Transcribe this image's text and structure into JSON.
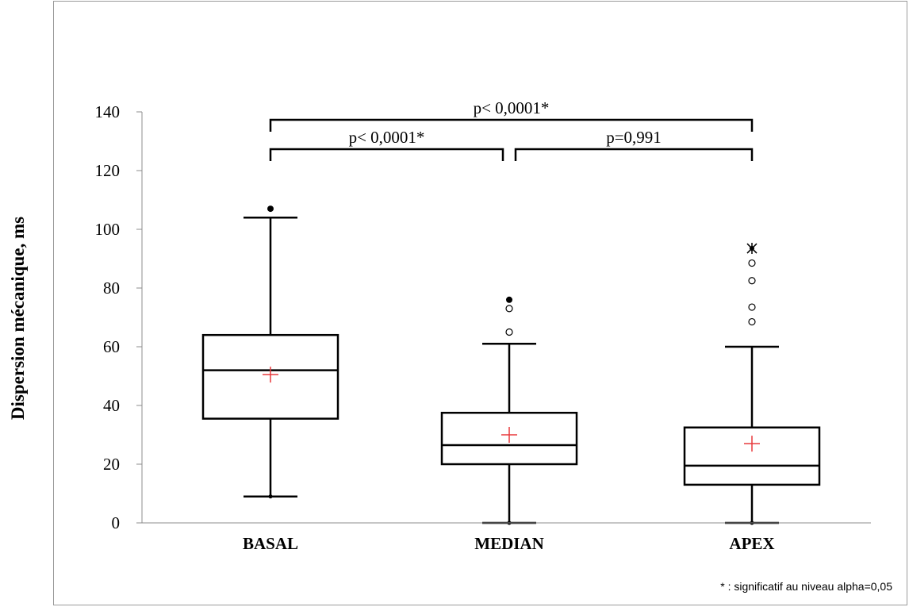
{
  "chart_data": {
    "type": "box",
    "ylabel": "Dispersion mécanique, ms",
    "ylim": [
      0,
      140
    ],
    "yticks": [
      0,
      20,
      40,
      60,
      80,
      100,
      120,
      140
    ],
    "grid": false,
    "categories": [
      "BASAL",
      "MEDIAN",
      "APEX"
    ],
    "boxes": [
      {
        "category": "BASAL",
        "min": 9,
        "q1": 35.5,
        "median": 52,
        "q3": 64,
        "max": 104,
        "mean": 50.5,
        "outliers": [
          {
            "value": 107,
            "kind": "extreme"
          }
        ]
      },
      {
        "category": "MEDIAN",
        "min": 0,
        "q1": 20,
        "median": 26.5,
        "q3": 37.5,
        "max": 61,
        "mean": 30,
        "outliers": [
          {
            "value": 76,
            "kind": "extreme"
          },
          {
            "value": 73,
            "kind": "outlier"
          },
          {
            "value": 65,
            "kind": "outlier"
          }
        ]
      },
      {
        "category": "APEX",
        "min": 0,
        "q1": 13,
        "median": 19.5,
        "q3": 32.5,
        "max": 60,
        "mean": 27,
        "outliers": [
          {
            "value": 93.5,
            "kind": "extreme"
          },
          {
            "value": 88.5,
            "kind": "outlier"
          },
          {
            "value": 82.5,
            "kind": "outlier"
          },
          {
            "value": 73.5,
            "kind": "outlier"
          },
          {
            "value": 68.5,
            "kind": "outlier"
          }
        ]
      }
    ],
    "comparisons": [
      {
        "from": "BASAL",
        "to": "APEX",
        "label": "p< 0,0001*",
        "level": 2
      },
      {
        "from": "BASAL",
        "to": "MEDIAN",
        "label": "p< 0,0001*",
        "level": 1
      },
      {
        "from": "MEDIAN",
        "to": "APEX",
        "label": "p=0,991",
        "level": 1
      }
    ],
    "footnote": "* : significatif au niveau alpha=0,05",
    "colors": {
      "box": "#000000",
      "mean_marker": "#e8393c",
      "frame": "#9a9a9a",
      "axis": "#8c8c8c"
    }
  }
}
